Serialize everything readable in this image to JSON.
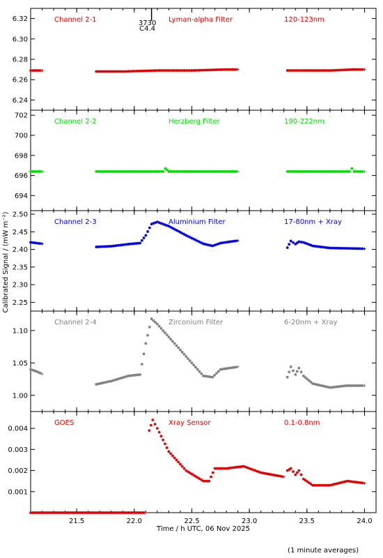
{
  "chart_data": {
    "type": "scatter",
    "layout": "stacked-panels",
    "xlabel": "Time / h UTC, 06 Nov 2025",
    "ylabel": "Calibrated Signal / (mW m⁻²)",
    "footnote": "(1 minute averages)",
    "xlim": [
      21.1,
      24.1
    ],
    "xticks": [
      "21.5",
      "22.0",
      "22.5",
      "23.0",
      "23.5",
      "24.0"
    ],
    "marker_annotation": {
      "x": 22.15,
      "lines": [
        "3730",
        "C4.4"
      ]
    },
    "panels": [
      {
        "name": "Channel 2-1",
        "filter": "Lyman-alpha Filter",
        "band": "120-123nm",
        "color": "#e00000",
        "ylim": [
          6.23,
          6.33
        ],
        "yticks": [
          "6.24",
          "6.26",
          "6.28",
          "6.30",
          "6.32"
        ],
        "segments": [
          {
            "x": [
              21.1,
              21.2
            ],
            "y": [
              6.269,
              6.269
            ]
          },
          {
            "x": [
              21.67,
              21.9,
              22.2,
              22.5,
              22.8,
              22.9
            ],
            "y": [
              6.268,
              6.268,
              6.269,
              6.269,
              6.27,
              6.27
            ]
          },
          {
            "x": [
              23.33,
              23.5,
              23.7,
              23.9,
              24.0
            ],
            "y": [
              6.269,
              6.269,
              6.269,
              6.27,
              6.27
            ]
          }
        ]
      },
      {
        "name": "Channel 2-2",
        "filter": "Herzberg Filter",
        "band": "190-222nm",
        "color": "#00e000",
        "ylim": [
          692.5,
          702.5
        ],
        "yticks": [
          "694",
          "696",
          "698",
          "700",
          "702"
        ],
        "segments": [
          {
            "x": [
              21.1,
              21.2
            ],
            "y": [
              696.4,
              696.4
            ]
          },
          {
            "x": [
              21.67,
              22.0,
              22.25,
              22.27,
              22.3,
              22.6,
              22.9
            ],
            "y": [
              696.4,
              696.4,
              696.4,
              696.7,
              696.4,
              696.4,
              696.4
            ]
          },
          {
            "x": [
              23.33,
              23.6,
              23.87,
              23.89,
              23.91,
              24.0
            ],
            "y": [
              696.4,
              696.4,
              696.4,
              696.7,
              696.4,
              696.4
            ]
          }
        ]
      },
      {
        "name": "Channel 2-3",
        "filter": "Aluminium Filter",
        "band": "17-80nm + Xray",
        "color": "#0000e0",
        "ylim": [
          2.225,
          2.51
        ],
        "yticks": [
          "2.25",
          "2.30",
          "2.35",
          "2.40",
          "2.45",
          "2.50"
        ],
        "segments": [
          {
            "x": [
              21.1,
              21.2
            ],
            "y": [
              2.42,
              2.416
            ]
          },
          {
            "x": [
              21.67,
              21.8,
              21.95,
              22.05,
              22.1,
              22.15,
              22.2,
              22.3,
              22.45,
              22.6,
              22.68,
              22.75,
              22.9
            ],
            "y": [
              2.407,
              2.409,
              2.415,
              2.418,
              2.44,
              2.472,
              2.478,
              2.466,
              2.44,
              2.416,
              2.41,
              2.418,
              2.425
            ]
          },
          {
            "x": [
              23.33,
              23.36,
              23.4,
              23.43,
              23.47,
              23.55,
              23.7,
              23.85,
              24.0
            ],
            "y": [
              2.405,
              2.424,
              2.415,
              2.422,
              2.42,
              2.41,
              2.404,
              2.403,
              2.402
            ]
          }
        ]
      },
      {
        "name": "Channel 2-4",
        "filter": "Zirconium Filter",
        "band": "6-20nm + Xray",
        "color": "#808080",
        "ylim": [
          0.975,
          1.13
        ],
        "yticks": [
          "1.00",
          "1.05",
          "1.10"
        ],
        "segments": [
          {
            "x": [
              21.1,
              21.15,
              21.2
            ],
            "y": [
              1.04,
              1.037,
              1.033
            ]
          },
          {
            "x": [
              21.67,
              21.8,
              21.95,
              22.05,
              22.1,
              22.15,
              22.2,
              22.3,
              22.45,
              22.6,
              22.68,
              22.75,
              22.9
            ],
            "y": [
              1.017,
              1.022,
              1.03,
              1.032,
              1.08,
              1.118,
              1.11,
              1.09,
              1.06,
              1.03,
              1.028,
              1.04,
              1.044
            ]
          },
          {
            "x": [
              23.33,
              23.36,
              23.4,
              23.43,
              23.47,
              23.55,
              23.7,
              23.85,
              24.0
            ],
            "y": [
              1.028,
              1.044,
              1.032,
              1.042,
              1.03,
              1.018,
              1.012,
              1.015,
              1.015
            ]
          }
        ]
      },
      {
        "name": "GOES",
        "filter": "Xray Sensor",
        "band": "0.1-0.8nm",
        "color": "#e00000",
        "ylim": [
          0.0,
          0.0048
        ],
        "yticks": [
          "0.001",
          "0.002",
          "0.003",
          "0.004"
        ],
        "segments": [
          {
            "x": [
              21.1,
              22.1
            ],
            "y": [
              0.0,
              0.0
            ]
          },
          {
            "x": [
              22.13,
              22.16,
              22.2,
              22.3,
              22.45,
              22.6,
              22.65,
              22.7,
              22.8,
              22.95,
              23.1,
              23.3
            ],
            "y": [
              0.0039,
              0.0044,
              0.004,
              0.0029,
              0.002,
              0.0015,
              0.0015,
              0.0021,
              0.0021,
              0.0022,
              0.0019,
              0.0017
            ]
          },
          {
            "x": [
              23.33,
              23.36,
              23.4,
              23.43,
              23.47,
              23.55,
              23.7,
              23.85,
              24.0
            ],
            "y": [
              0.002,
              0.0021,
              0.0018,
              0.002,
              0.0016,
              0.0013,
              0.0013,
              0.0015,
              0.0014
            ]
          }
        ]
      }
    ]
  }
}
